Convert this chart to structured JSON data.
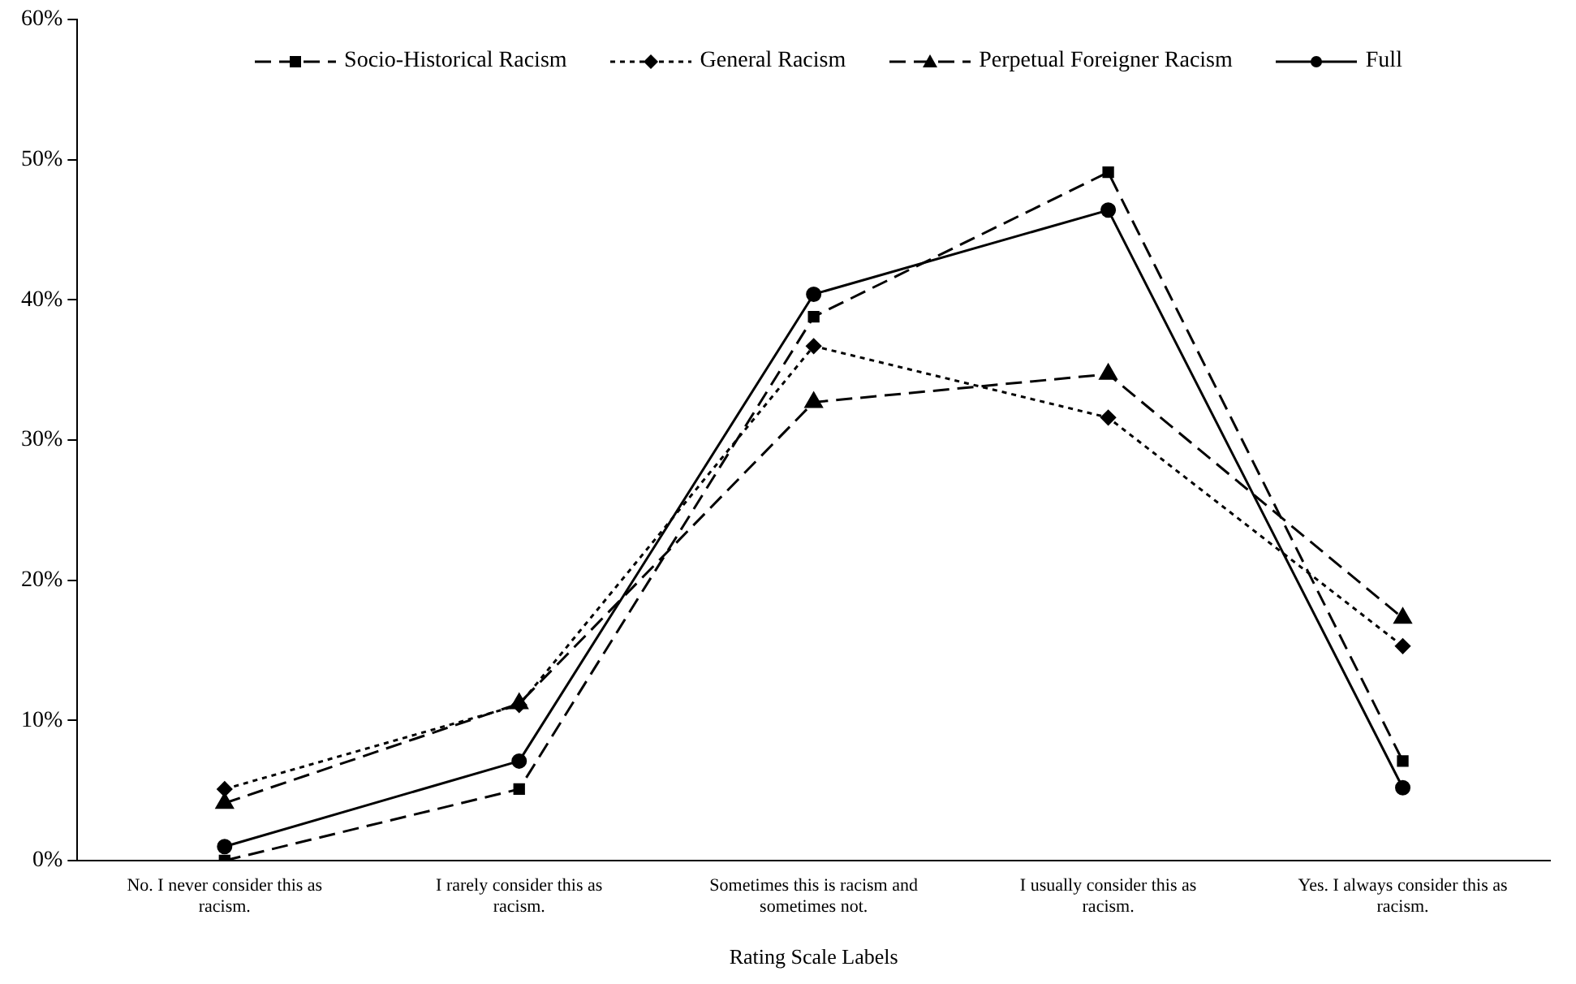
{
  "chart_data": {
    "type": "line",
    "xlabel": "Rating Scale Labels",
    "categories": [
      "No. I never consider this as racism.",
      "I rarely consider this as racism.",
      "Sometimes this is racism and sometimes not.",
      "I usually consider this as racism.",
      "Yes. I always consider this as racism."
    ],
    "ylim": [
      0,
      60
    ],
    "yticks": [
      {
        "value": 0,
        "label": "0%"
      },
      {
        "value": 10,
        "label": "10%"
      },
      {
        "value": 20,
        "label": "20%"
      },
      {
        "value": 30,
        "label": "30%"
      },
      {
        "value": 40,
        "label": "40%"
      },
      {
        "value": 50,
        "label": "50%"
      },
      {
        "value": 60,
        "label": "60%"
      }
    ],
    "grid": false,
    "legend": "top",
    "series": [
      {
        "name": "Socio-Historical Racism",
        "color": "#000000",
        "marker": "square",
        "line_style": "dashed",
        "values": [
          0,
          5.1,
          38.8,
          49.1,
          7.1
        ]
      },
      {
        "name": "General Racism",
        "color": "#000000",
        "marker": "diamond",
        "line_style": "dotted",
        "values": [
          5.1,
          11.1,
          36.7,
          31.6,
          15.3
        ]
      },
      {
        "name": "Perpetual Foreigner Racism",
        "color": "#000000",
        "marker": "triangle",
        "line_style": "dashed",
        "values": [
          4.1,
          11.2,
          32.7,
          34.7,
          17.3
        ]
      },
      {
        "name": "Full",
        "color": "#000000",
        "marker": "circle",
        "line_style": "solid",
        "values": [
          1.0,
          7.1,
          40.4,
          46.4,
          5.2
        ]
      }
    ]
  }
}
